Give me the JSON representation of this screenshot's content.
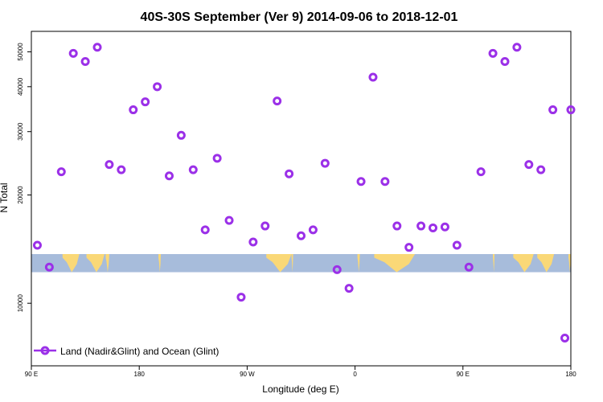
{
  "chart_data": {
    "type": "scatter",
    "title": "40S-30S September (Ver 9)   2014-09-06 to 2018-12-01",
    "xlabel": "Longitude (deg E)",
    "ylabel": "N Total",
    "y_scale": "log",
    "xlim": [
      90,
      540
    ],
    "ylim": [
      6700,
      57000
    ],
    "x_ticks": [
      {
        "value": 90,
        "label": "90 E"
      },
      {
        "value": 180,
        "label": "180"
      },
      {
        "value": 270,
        "label": "90 W"
      },
      {
        "value": 360,
        "label": "0"
      },
      {
        "value": 450,
        "label": "90 E"
      },
      {
        "value": 540,
        "label": "180"
      }
    ],
    "y_ticks": [
      {
        "value": 10000,
        "label": "10000"
      },
      {
        "value": 20000,
        "label": "20000"
      },
      {
        "value": 30000,
        "label": "30000"
      },
      {
        "value": 40000,
        "label": "40000"
      },
      {
        "value": 50000,
        "label": "50000"
      }
    ],
    "grid": false,
    "legend": {
      "position": "bottom-left"
    },
    "map_strip": {
      "y_range": [
        12200,
        13700
      ],
      "ocean_color": "#a7bcdb",
      "land_color": "#fad877",
      "land_segments": [
        [
          116,
          130
        ],
        [
          136,
          151
        ],
        [
          152,
          155
        ],
        [
          196,
          198
        ],
        [
          286,
          307
        ],
        [
          307,
          308
        ],
        [
          362,
          364
        ],
        [
          376,
          410
        ],
        [
          475,
          475
        ],
        [
          492,
          509
        ],
        [
          512,
          526
        ],
        [
          538,
          540
        ]
      ]
    },
    "series": [
      {
        "name": "Land (Nadir&Glint) and Ocean (Glint)",
        "color": "#9b30e8",
        "x": [
          95,
          105,
          115,
          125,
          135,
          145,
          155,
          165,
          175,
          185,
          195,
          205,
          215,
          225,
          235,
          245,
          255,
          265,
          275,
          285,
          295,
          305,
          315,
          325,
          335,
          345,
          355,
          365,
          375,
          385,
          395,
          405,
          415,
          425,
          435,
          445,
          455,
          465,
          475,
          485,
          495,
          505,
          515,
          525,
          535,
          540
        ],
        "y": [
          14500,
          12600,
          23200,
          49500,
          47000,
          51500,
          24300,
          23500,
          34500,
          36300,
          40000,
          22600,
          29300,
          23500,
          16000,
          25300,
          17000,
          10400,
          14800,
          16400,
          36500,
          22900,
          15400,
          16000,
          24500,
          12400,
          11000,
          21800,
          42500,
          21800,
          16400,
          14300,
          16400,
          16200,
          16300,
          14500,
          12600,
          23200,
          49500,
          47000,
          51500,
          24300,
          23500,
          34500,
          8000,
          34500
        ]
      }
    ]
  }
}
